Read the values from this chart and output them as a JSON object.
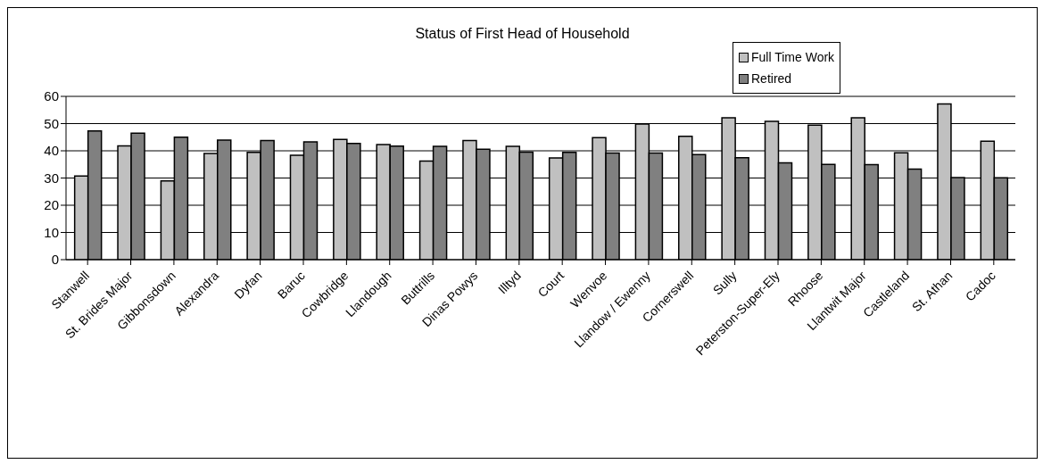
{
  "chart_data": {
    "type": "bar",
    "title": "Status of First Head of Household",
    "categories": [
      "Stanwell",
      "St. Brides Major",
      "Gibbonsdown",
      "Alexandra",
      "Dyfan",
      "Baruc",
      "Cowbridge",
      "Llandough",
      "Buttrills",
      "Dinas Powys",
      "Illtyd",
      "Court",
      "Wenvoe",
      "Llandow / Ewenny",
      "Cornerswell",
      "Sully",
      "Peterston-Super-Ely",
      "Rhoose",
      "Llantwit Major",
      "Castleland",
      "St. Athan",
      "Cadoc"
    ],
    "series": [
      {
        "name": "Full Time  Work",
        "color": "#c0c0c0",
        "values": [
          30.7,
          41.8,
          28.9,
          39,
          39.4,
          38.4,
          44.2,
          42.3,
          36.2,
          43.8,
          41.6,
          37.4,
          44.8,
          49.8,
          45.3,
          52.1,
          50.8,
          49.4,
          52.1,
          39.3,
          57.2,
          43.5
        ]
      },
      {
        "name": "Retired",
        "color": "#808080",
        "values": [
          47.3,
          46.5,
          45,
          43.9,
          43.8,
          43.3,
          42.7,
          41.7,
          41.6,
          40.6,
          39.5,
          39.4,
          39.2,
          39.2,
          38.6,
          37.5,
          35.6,
          35,
          34.9,
          33.3,
          30.2,
          30.1
        ]
      }
    ],
    "ylim": [
      0,
      60
    ],
    "yticks": [
      0,
      10,
      20,
      30,
      40,
      50,
      60
    ],
    "grid": "y",
    "legend": "top right"
  }
}
